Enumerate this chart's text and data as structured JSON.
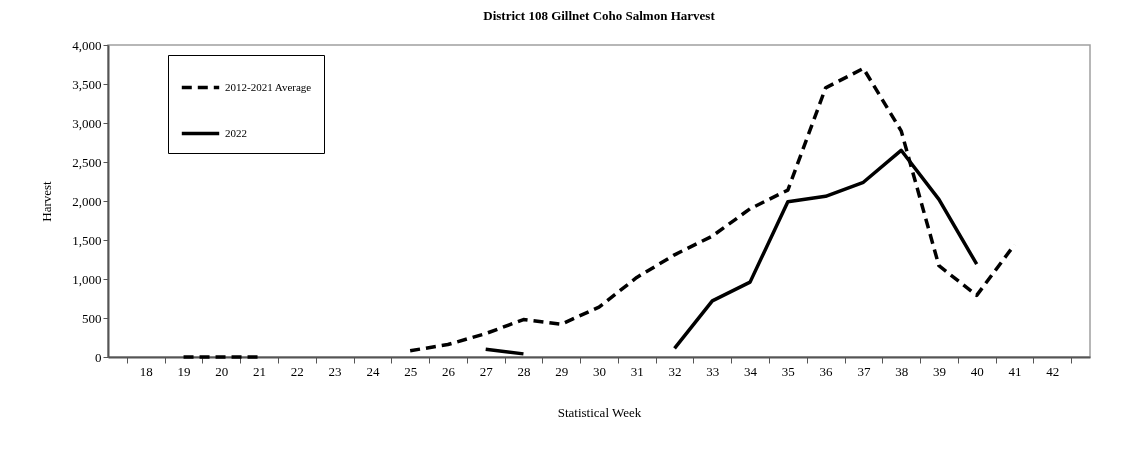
{
  "chart_data": {
    "type": "line",
    "title": "District 108 Gillnet Coho  Salmon Harvest",
    "xlabel": "Statistical Week",
    "ylabel": "Harvest",
    "categories": [
      "18",
      "19",
      "20",
      "21",
      "22",
      "23",
      "24",
      "25",
      "26",
      "27",
      "28",
      "29",
      "30",
      "31",
      "32",
      "33",
      "34",
      "35",
      "36",
      "37",
      "38",
      "39",
      "40",
      "41",
      "42"
    ],
    "series": [
      {
        "name": "2012-2021 Average",
        "color": "#000000",
        "line_style": "dashed",
        "values": [
          null,
          0,
          0,
          0,
          null,
          null,
          null,
          80,
          160,
          300,
          480,
          420,
          640,
          1020,
          1310,
          1550,
          1900,
          2140,
          3450,
          3700,
          2900,
          1170,
          790,
          1440,
          null
        ]
      },
      {
        "name": "2022",
        "color": "#000000",
        "line_style": "solid",
        "values": [
          null,
          null,
          null,
          null,
          null,
          null,
          null,
          null,
          null,
          100,
          40,
          null,
          null,
          null,
          110,
          720,
          960,
          1990,
          2060,
          2240,
          2650,
          2020,
          1190,
          null,
          null
        ]
      }
    ],
    "ylim": [
      0,
      4000
    ],
    "yticks": [
      0,
      500,
      {
        "value": 1000,
        "label": "1,000"
      },
      {
        "value": 1500,
        "label": "1,500"
      },
      {
        "value": 2000,
        "label": "2,000"
      },
      {
        "value": 2500,
        "label": "2,500"
      },
      {
        "value": 3000,
        "label": "3,000"
      },
      {
        "value": 3500,
        "label": "3,500"
      },
      {
        "value": 4000,
        "label": "4,000"
      }
    ],
    "grid": false,
    "legend": "top left"
  }
}
